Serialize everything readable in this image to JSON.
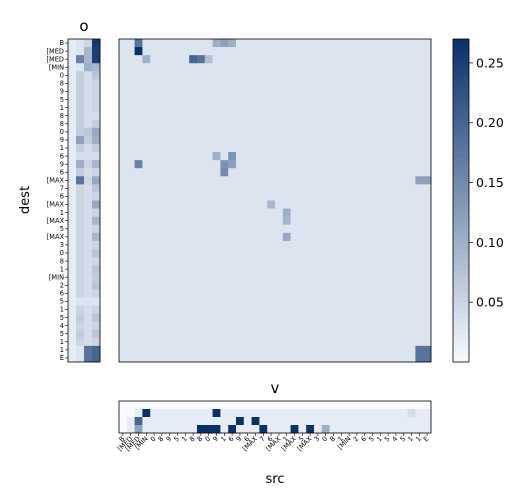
{
  "chart_data": {
    "type": "heatmap",
    "color_scale": {
      "name": "Blues",
      "low": "#f7fbff",
      "high": "#08306b",
      "vmin": 0,
      "vmax": 0.27,
      "ticks": [
        "0.05",
        "0.10",
        "0.15",
        "0.20",
        "0.25"
      ],
      "tick_values": [
        0.05,
        0.1,
        0.15,
        0.2,
        0.25
      ]
    },
    "panels": {
      "o": {
        "title": "o",
        "ylabel": "dest"
      },
      "v": {
        "title": "v",
        "xlabel": "src"
      }
    },
    "dest_labels": [
      "B",
      "[MED",
      "[MED",
      "[MIN",
      "0",
      "8",
      "9",
      "5",
      "1",
      "8",
      "8",
      "0",
      "9",
      "1",
      "6",
      "9",
      "6",
      "[MAX",
      "7",
      "6",
      "[MAX",
      "1",
      "[MAX",
      "5",
      "[MAX",
      "3",
      "0",
      "8",
      "1",
      "[MIN",
      "2",
      "6",
      "5",
      "1",
      "5",
      "4",
      "5",
      "1",
      "1",
      "E"
    ],
    "src_labels": [
      "B",
      "[MED",
      "[MED",
      "[MIN",
      "0",
      "8",
      "9",
      "5",
      "1",
      "8",
      "8",
      "0",
      "9",
      "1",
      "6",
      "9",
      "6",
      "[MAX",
      "7",
      "6",
      "[MAX",
      "1",
      "[MAX",
      "5",
      "[MAX",
      "3",
      "0",
      "8",
      "1",
      "[MIN",
      "2",
      "6",
      "5",
      "1",
      "5",
      "4",
      "5",
      "1",
      "1",
      "E"
    ],
    "o_matrix": [
      [
        0.02,
        0.03,
        0.05,
        0.26
      ],
      [
        0.02,
        0.03,
        0.09,
        0.25
      ],
      [
        0.02,
        0.16,
        0.09,
        0.25
      ],
      [
        0.02,
        0.03,
        0.1,
        0.09
      ],
      [
        0.02,
        0.06,
        0.04,
        0.07
      ],
      [
        0.02,
        0.06,
        0.04,
        0.05
      ],
      [
        0.02,
        0.06,
        0.04,
        0.05
      ],
      [
        0.02,
        0.06,
        0.04,
        0.05
      ],
      [
        0.02,
        0.06,
        0.04,
        0.05
      ],
      [
        0.02,
        0.06,
        0.04,
        0.04
      ],
      [
        0.02,
        0.06,
        0.04,
        0.06
      ],
      [
        0.02,
        0.06,
        0.07,
        0.11
      ],
      [
        0.02,
        0.12,
        0.06,
        0.1
      ],
      [
        0.02,
        0.06,
        0.04,
        0.06
      ],
      [
        0.02,
        0.04,
        0.04,
        0.04
      ],
      [
        0.02,
        0.1,
        0.05,
        0.09
      ],
      [
        0.02,
        0.06,
        0.04,
        0.05
      ],
      [
        0.02,
        0.18,
        0.05,
        0.11
      ],
      [
        0.02,
        0.05,
        0.04,
        0.07
      ],
      [
        0.02,
        0.05,
        0.04,
        0.05
      ],
      [
        0.02,
        0.05,
        0.04,
        0.11
      ],
      [
        0.02,
        0.05,
        0.04,
        0.05
      ],
      [
        0.02,
        0.05,
        0.04,
        0.09
      ],
      [
        0.02,
        0.05,
        0.04,
        0.05
      ],
      [
        0.02,
        0.05,
        0.04,
        0.09
      ],
      [
        0.02,
        0.05,
        0.04,
        0.05
      ],
      [
        0.02,
        0.05,
        0.04,
        0.07
      ],
      [
        0.02,
        0.05,
        0.04,
        0.05
      ],
      [
        0.02,
        0.05,
        0.04,
        0.07
      ],
      [
        0.02,
        0.05,
        0.04,
        0.06
      ],
      [
        0.02,
        0.05,
        0.04,
        0.07
      ],
      [
        0.02,
        0.05,
        0.04,
        0.05
      ],
      [
        0.02,
        0.03,
        0.03,
        0.03
      ],
      [
        0.02,
        0.05,
        0.04,
        0.05
      ],
      [
        0.02,
        0.06,
        0.04,
        0.07
      ],
      [
        0.02,
        0.05,
        0.04,
        0.05
      ],
      [
        0.02,
        0.06,
        0.04,
        0.07
      ],
      [
        0.02,
        0.05,
        0.04,
        0.05
      ],
      [
        0.02,
        0.03,
        0.18,
        0.2
      ],
      [
        0.02,
        0.03,
        0.18,
        0.2
      ]
    ],
    "v_matrix": [
      [
        0,
        0,
        0,
        0,
        0,
        0,
        0,
        0,
        0,
        0,
        0,
        0,
        0,
        0,
        0,
        0,
        0,
        0,
        0,
        0,
        0,
        0,
        0,
        0,
        0,
        0,
        0,
        0,
        0,
        0,
        0,
        0,
        0,
        0,
        0,
        0,
        0,
        0,
        0,
        0
      ],
      [
        0,
        0,
        0.02,
        0.27,
        0.02,
        0.02,
        0.02,
        0.02,
        0.02,
        0.02,
        0.02,
        0.02,
        0.27,
        0.02,
        0.02,
        0.02,
        0.02,
        0.02,
        0.02,
        0.02,
        0.02,
        0.02,
        0.02,
        0.02,
        0.02,
        0.02,
        0.02,
        0.02,
        0.02,
        0.02,
        0.02,
        0.02,
        0.02,
        0.02,
        0.02,
        0.02,
        0.02,
        0.04,
        0.02,
        0.02
      ],
      [
        0,
        0.02,
        0.2,
        0.02,
        0.02,
        0.02,
        0.02,
        0.02,
        0.02,
        0.02,
        0.02,
        0.02,
        0.02,
        0.02,
        0.02,
        0.27,
        0.02,
        0.27,
        0.02,
        0.02,
        0.02,
        0.02,
        0.02,
        0.02,
        0.02,
        0.02,
        0.02,
        0.02,
        0.02,
        0.02,
        0.02,
        0.02,
        0.02,
        0.02,
        0.02,
        0.02,
        0.02,
        0.02,
        0.02,
        0.02
      ],
      [
        0,
        0.02,
        0.12,
        0.02,
        0.02,
        0.02,
        0.02,
        0.02,
        0.02,
        0.02,
        0.27,
        0.27,
        0.27,
        0.02,
        0.27,
        0.02,
        0.02,
        0.02,
        0.27,
        0.02,
        0.02,
        0.02,
        0.27,
        0.02,
        0.27,
        0.02,
        0.1,
        0.02,
        0.02,
        0.02,
        0.02,
        0.02,
        0.02,
        0.02,
        0.02,
        0.02,
        0.02,
        0.02,
        0.02,
        0.02
      ]
    ],
    "main_matrix_summary": {
      "base": 0.03,
      "hot_cells": [
        {
          "dest": 0,
          "src": 2,
          "value": 0.18
        },
        {
          "dest": 1,
          "src": 2,
          "value": 0.27
        },
        {
          "dest": 2,
          "src": 3,
          "value": 0.1
        },
        {
          "dest": 2,
          "src": 9,
          "value": 0.2
        },
        {
          "dest": 2,
          "src": 10,
          "value": 0.18
        },
        {
          "dest": 2,
          "src": 11,
          "value": 0.08
        },
        {
          "dest": 0,
          "src": 12,
          "value": 0.1
        },
        {
          "dest": 0,
          "src": 13,
          "value": 0.12
        },
        {
          "dest": 0,
          "src": 14,
          "value": 0.1
        },
        {
          "dest": 15,
          "src": 2,
          "value": 0.16
        },
        {
          "dest": 14,
          "src": 12,
          "value": 0.1
        },
        {
          "dest": 15,
          "src": 13,
          "value": 0.14
        },
        {
          "dest": 16,
          "src": 13,
          "value": 0.15
        },
        {
          "dest": 14,
          "src": 14,
          "value": 0.14
        },
        {
          "dest": 15,
          "src": 14,
          "value": 0.12
        },
        {
          "dest": 20,
          "src": 19,
          "value": 0.09
        },
        {
          "dest": 21,
          "src": 21,
          "value": 0.1
        },
        {
          "dest": 22,
          "src": 21,
          "value": 0.09
        },
        {
          "dest": 24,
          "src": 21,
          "value": 0.11
        },
        {
          "dest": 17,
          "src": 38,
          "value": 0.12
        },
        {
          "dest": 17,
          "src": 39,
          "value": 0.12
        },
        {
          "dest": 38,
          "src": 38,
          "value": 0.18
        },
        {
          "dest": 38,
          "src": 39,
          "value": 0.18
        },
        {
          "dest": 39,
          "src": 38,
          "value": 0.18
        },
        {
          "dest": 39,
          "src": 39,
          "value": 0.18
        }
      ]
    }
  }
}
